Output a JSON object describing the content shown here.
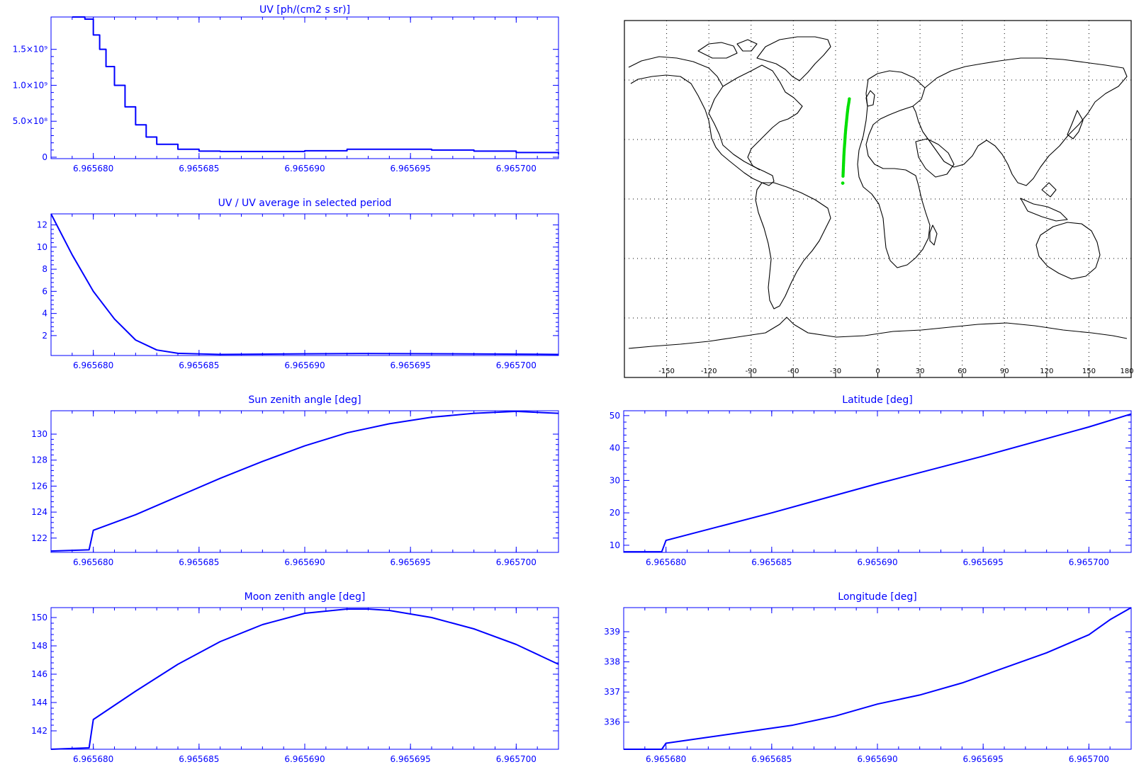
{
  "axis_color": "#0000ff",
  "map_line_color": "#000000",
  "track_color": "#00e000",
  "map": {
    "x_ticks": [
      "-150",
      "-120",
      "-90",
      "-60",
      "-30",
      "0",
      "30",
      "60",
      "90",
      "120",
      "150",
      "180"
    ]
  },
  "chart_data": [
    {
      "id": "uv",
      "type": "line",
      "title": "UV [ph/(cm2 s sr)]",
      "xlabel": "",
      "ylabel": "",
      "xlim": [
        6.965678,
        6.965702
      ],
      "ylim": [
        -20000000,
        1950000000
      ],
      "x_ticks": [
        "6.965680",
        "6.965685",
        "6.965690",
        "6.965695",
        "6.965700"
      ],
      "y_ticks": [
        {
          "value": 0,
          "label": "0"
        },
        {
          "value": 500000000,
          "label": "5.0×10⁸"
        },
        {
          "value": 1000000000,
          "label": "1.0×10⁹"
        },
        {
          "value": 1500000000,
          "label": "1.5×10⁹"
        }
      ],
      "step": true,
      "x": [
        6.965679,
        6.9656796,
        6.96568,
        6.9656803,
        6.9656806,
        6.965681,
        6.9656815,
        6.965682,
        6.9656825,
        6.965683,
        6.965684,
        6.965685,
        6.965686,
        6.965688,
        6.96569,
        6.965692,
        6.965694,
        6.965696,
        6.965698,
        6.9657,
        6.965702
      ],
      "y": [
        1950000000,
        1920000000,
        1700000000,
        1500000000,
        1260000000,
        1000000000,
        700000000,
        450000000,
        280000000,
        180000000,
        110000000,
        85000000,
        80000000,
        80000000,
        90000000,
        110000000,
        110000000,
        100000000,
        85000000,
        65000000,
        40000000
      ]
    },
    {
      "id": "uv-ratio",
      "type": "line",
      "title": "UV / UV average in selected period",
      "xlabel": "",
      "ylabel": "",
      "xlim": [
        6.965678,
        6.965702
      ],
      "ylim": [
        0.2,
        13
      ],
      "x_ticks": [
        "6.965680",
        "6.965685",
        "6.965690",
        "6.965695",
        "6.965700"
      ],
      "y_ticks": [
        {
          "value": 2,
          "label": "2"
        },
        {
          "value": 4,
          "label": "4"
        },
        {
          "value": 6,
          "label": "6"
        },
        {
          "value": 8,
          "label": "8"
        },
        {
          "value": 10,
          "label": "10"
        },
        {
          "value": 12,
          "label": "12"
        }
      ],
      "x": [
        6.965678,
        6.965679,
        6.96568,
        6.965681,
        6.965682,
        6.965683,
        6.965684,
        6.965686,
        6.96569,
        6.965693,
        6.965697,
        6.965702
      ],
      "y": [
        13,
        9.3,
        6.0,
        3.5,
        1.6,
        0.7,
        0.4,
        0.3,
        0.35,
        0.38,
        0.35,
        0.3
      ]
    },
    {
      "id": "sun-zenith",
      "type": "line",
      "title": "Sun zenith angle [deg]",
      "xlabel": "",
      "ylabel": "",
      "xlim": [
        6.965678,
        6.965702
      ],
      "ylim": [
        120.9,
        131.8
      ],
      "x_ticks": [
        "6.965680",
        "6.965685",
        "6.965690",
        "6.965695",
        "6.965700"
      ],
      "y_ticks": [
        {
          "value": 122,
          "label": "122"
        },
        {
          "value": 124,
          "label": "124"
        },
        {
          "value": 126,
          "label": "126"
        },
        {
          "value": 128,
          "label": "128"
        },
        {
          "value": 130,
          "label": "130"
        }
      ],
      "x": [
        6.965678,
        6.9656798,
        6.96568,
        6.965682,
        6.965684,
        6.965686,
        6.965688,
        6.96569,
        6.965692,
        6.965694,
        6.965696,
        6.965698,
        6.9657,
        6.965702
      ],
      "y": [
        121,
        121.1,
        122.6,
        123.8,
        125.2,
        126.6,
        127.9,
        129.1,
        130.1,
        130.8,
        131.3,
        131.6,
        131.75,
        131.6
      ]
    },
    {
      "id": "moon-zenith",
      "type": "line",
      "title": "Moon zenith angle [deg]",
      "xlabel": "",
      "ylabel": "",
      "xlim": [
        6.965678,
        6.965702
      ],
      "ylim": [
        140.7,
        150.7
      ],
      "x_ticks": [
        "6.965680",
        "6.965685",
        "6.965690",
        "6.965695",
        "6.965700"
      ],
      "y_ticks": [
        {
          "value": 142,
          "label": "142"
        },
        {
          "value": 144,
          "label": "144"
        },
        {
          "value": 146,
          "label": "146"
        },
        {
          "value": 148,
          "label": "148"
        },
        {
          "value": 150,
          "label": "150"
        }
      ],
      "x": [
        6.965678,
        6.9656798,
        6.96568,
        6.965682,
        6.965684,
        6.965686,
        6.965688,
        6.96569,
        6.965692,
        6.965693,
        6.965694,
        6.965696,
        6.965698,
        6.9657,
        6.965702
      ],
      "y": [
        140.7,
        140.8,
        142.8,
        144.8,
        146.7,
        148.3,
        149.5,
        150.3,
        150.6,
        150.6,
        150.5,
        150.0,
        149.2,
        148.1,
        146.7
      ]
    },
    {
      "id": "latitude",
      "type": "line",
      "title": "Latitude [deg]",
      "xlabel": "",
      "ylabel": "",
      "xlim": [
        6.965678,
        6.965702
      ],
      "ylim": [
        7.8,
        51.5
      ],
      "x_ticks": [
        "6.965680",
        "6.965685",
        "6.965690",
        "6.965695",
        "6.965700"
      ],
      "y_ticks": [
        {
          "value": 10,
          "label": "10"
        },
        {
          "value": 20,
          "label": "20"
        },
        {
          "value": 30,
          "label": "30"
        },
        {
          "value": 40,
          "label": "40"
        },
        {
          "value": 50,
          "label": "50"
        }
      ],
      "x": [
        6.965678,
        6.9656798,
        6.96568,
        6.965685,
        6.96569,
        6.965695,
        6.9657,
        6.965702
      ],
      "y": [
        8,
        8,
        11.5,
        20,
        29,
        37.5,
        46.5,
        50.5
      ]
    },
    {
      "id": "longitude",
      "type": "line",
      "title": "Longitude [deg]",
      "xlabel": "",
      "ylabel": "",
      "xlim": [
        6.965678,
        6.965702
      ],
      "ylim": [
        335.1,
        339.8
      ],
      "x_ticks": [
        "6.965680",
        "6.965685",
        "6.965690",
        "6.965695",
        "6.965700"
      ],
      "y_ticks": [
        {
          "value": 336,
          "label": "336"
        },
        {
          "value": 337,
          "label": "337"
        },
        {
          "value": 338,
          "label": "338"
        },
        {
          "value": 339,
          "label": "339"
        }
      ],
      "x": [
        6.965678,
        6.9656798,
        6.96568,
        6.965682,
        6.965684,
        6.965686,
        6.965688,
        6.96569,
        6.965692,
        6.965694,
        6.965696,
        6.965698,
        6.9657,
        6.965701,
        6.965702
      ],
      "y": [
        335.1,
        335.1,
        335.3,
        335.5,
        335.7,
        335.9,
        336.2,
        336.6,
        336.9,
        337.3,
        337.8,
        338.3,
        338.9,
        339.4,
        339.8
      ]
    }
  ]
}
